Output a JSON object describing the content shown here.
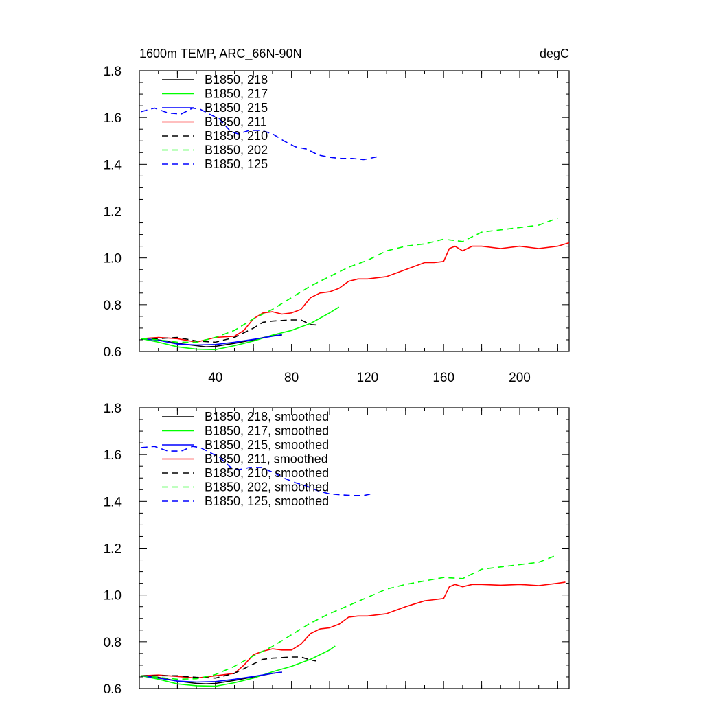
{
  "chart_data": [
    {
      "type": "line",
      "title": "1600m TEMP, ARC_66N-90N",
      "units": "degC",
      "xlim": [
        0,
        226
      ],
      "ylim": [
        0.6,
        1.8
      ],
      "xticks": [
        40,
        80,
        120,
        160,
        200
      ],
      "yticks": [
        0.6,
        0.8,
        1.0,
        1.2,
        1.4,
        1.6,
        1.8
      ],
      "ytick_labels": [
        "0.6",
        "0.8",
        "1.0",
        "1.2",
        "1.4",
        "1.6",
        "1.8"
      ],
      "legend_position": "top-left",
      "series": [
        {
          "name": "B1850, 218",
          "color": "#000000",
          "dash": "solid",
          "x": [
            1,
            10,
            20,
            30,
            35,
            40,
            50,
            60,
            70,
            75
          ],
          "y": [
            0.655,
            0.65,
            0.635,
            0.625,
            0.62,
            0.622,
            0.635,
            0.65,
            0.668,
            0.67
          ]
        },
        {
          "name": "B1850, 217",
          "color": "#00ff00",
          "dash": "solid",
          "x": [
            1,
            10,
            20,
            30,
            40,
            50,
            60,
            70,
            80,
            90,
            100,
            105
          ],
          "y": [
            0.655,
            0.64,
            0.62,
            0.61,
            0.608,
            0.625,
            0.645,
            0.67,
            0.69,
            0.72,
            0.765,
            0.79
          ]
        },
        {
          "name": "B1850, 215",
          "color": "#0000ff",
          "dash": "solid",
          "x": [
            1,
            10,
            20,
            30,
            40,
            50,
            60,
            70,
            75
          ],
          "y": [
            0.655,
            0.648,
            0.632,
            0.628,
            0.63,
            0.64,
            0.652,
            0.665,
            0.672
          ]
        },
        {
          "name": "B1850, 211",
          "color": "#ff0000",
          "dash": "solid",
          "x": [
            1,
            10,
            20,
            30,
            40,
            50,
            55,
            60,
            65,
            70,
            75,
            80,
            85,
            90,
            95,
            100,
            105,
            110,
            115,
            120,
            125,
            130,
            140,
            150,
            155,
            160,
            163,
            166,
            170,
            175,
            180,
            190,
            200,
            210,
            220,
            226
          ],
          "y": [
            0.655,
            0.66,
            0.655,
            0.64,
            0.66,
            0.665,
            0.69,
            0.74,
            0.765,
            0.77,
            0.76,
            0.765,
            0.78,
            0.83,
            0.85,
            0.855,
            0.87,
            0.9,
            0.91,
            0.91,
            0.915,
            0.92,
            0.95,
            0.98,
            0.98,
            0.985,
            1.04,
            1.05,
            1.03,
            1.05,
            1.05,
            1.04,
            1.05,
            1.04,
            1.05,
            1.065
          ]
        },
        {
          "name": "B1850, 210",
          "color": "#000000",
          "dash": "dashed",
          "x": [
            1,
            10,
            20,
            30,
            40,
            50,
            60,
            65,
            70,
            80,
            85,
            90,
            95
          ],
          "y": [
            0.655,
            0.655,
            0.66,
            0.645,
            0.64,
            0.66,
            0.7,
            0.725,
            0.73,
            0.735,
            0.735,
            0.715,
            0.712
          ]
        },
        {
          "name": "B1850, 202",
          "color": "#00ff00",
          "dash": "dashed",
          "x": [
            1,
            10,
            20,
            30,
            40,
            50,
            60,
            70,
            80,
            90,
            100,
            110,
            120,
            130,
            140,
            150,
            160,
            170,
            180,
            190,
            200,
            210,
            220
          ],
          "y": [
            0.655,
            0.65,
            0.64,
            0.64,
            0.66,
            0.69,
            0.74,
            0.78,
            0.83,
            0.88,
            0.92,
            0.96,
            0.99,
            1.03,
            1.05,
            1.06,
            1.08,
            1.07,
            1.11,
            1.12,
            1.13,
            1.14,
            1.17
          ]
        },
        {
          "name": "B1850, 125",
          "color": "#0000ff",
          "dash": "dashed",
          "x": [
            1,
            8,
            15,
            22,
            28,
            32,
            38,
            42,
            48,
            52,
            58,
            64,
            70,
            76,
            82,
            88,
            94,
            100,
            106,
            112,
            118,
            125
          ],
          "y": [
            1.625,
            1.64,
            1.62,
            1.615,
            1.64,
            1.635,
            1.61,
            1.595,
            1.54,
            1.53,
            1.545,
            1.545,
            1.53,
            1.5,
            1.475,
            1.465,
            1.44,
            1.43,
            1.425,
            1.425,
            1.42,
            1.432
          ]
        }
      ]
    },
    {
      "type": "line",
      "xlim": [
        0,
        226
      ],
      "ylim": [
        0.6,
        1.8
      ],
      "xticks": [
        40,
        80,
        120,
        160,
        200
      ],
      "yticks": [
        0.6,
        0.8,
        1.0,
        1.2,
        1.4,
        1.6,
        1.8
      ],
      "ytick_labels": [
        "0.6",
        "0.8",
        "1.0",
        "1.2",
        "1.4",
        "1.6",
        "1.8"
      ],
      "legend_position": "top-left",
      "series": [
        {
          "name": "B1850, 218, smoothed",
          "color": "#000000",
          "dash": "solid",
          "x": [
            1,
            10,
            20,
            30,
            35,
            40,
            50,
            60,
            70,
            75
          ],
          "y": [
            0.655,
            0.648,
            0.632,
            0.622,
            0.62,
            0.622,
            0.635,
            0.65,
            0.665,
            0.67
          ]
        },
        {
          "name": "B1850, 217, smoothed",
          "color": "#00ff00",
          "dash": "solid",
          "x": [
            1,
            10,
            20,
            30,
            40,
            50,
            60,
            70,
            80,
            90,
            100,
            103
          ],
          "y": [
            0.655,
            0.64,
            0.62,
            0.612,
            0.61,
            0.625,
            0.645,
            0.672,
            0.695,
            0.725,
            0.765,
            0.782
          ]
        },
        {
          "name": "B1850, 215, smoothed",
          "color": "#0000ff",
          "dash": "solid",
          "x": [
            1,
            10,
            20,
            30,
            40,
            50,
            60,
            70,
            75
          ],
          "y": [
            0.655,
            0.645,
            0.632,
            0.628,
            0.63,
            0.64,
            0.652,
            0.665,
            0.67
          ]
        },
        {
          "name": "B1850, 211, smoothed",
          "color": "#ff0000",
          "dash": "solid",
          "x": [
            1,
            10,
            20,
            30,
            40,
            50,
            55,
            60,
            65,
            70,
            75,
            80,
            85,
            90,
            95,
            100,
            105,
            110,
            115,
            120,
            125,
            130,
            140,
            150,
            155,
            160,
            163,
            166,
            170,
            175,
            180,
            190,
            200,
            210,
            220,
            224
          ],
          "y": [
            0.655,
            0.658,
            0.652,
            0.645,
            0.655,
            0.665,
            0.7,
            0.745,
            0.76,
            0.77,
            0.765,
            0.765,
            0.79,
            0.835,
            0.855,
            0.86,
            0.875,
            0.905,
            0.91,
            0.91,
            0.915,
            0.92,
            0.95,
            0.975,
            0.98,
            0.985,
            1.035,
            1.045,
            1.035,
            1.045,
            1.045,
            1.042,
            1.045,
            1.04,
            1.05,
            1.055
          ]
        },
        {
          "name": "B1850, 210, smoothed",
          "color": "#000000",
          "dash": "dashed",
          "x": [
            1,
            10,
            20,
            30,
            40,
            50,
            60,
            65,
            70,
            80,
            85,
            90,
            93
          ],
          "y": [
            0.655,
            0.655,
            0.655,
            0.648,
            0.645,
            0.665,
            0.705,
            0.725,
            0.73,
            0.735,
            0.735,
            0.722,
            0.718
          ]
        },
        {
          "name": "B1850, 202, smoothed",
          "color": "#00ff00",
          "dash": "dashed",
          "x": [
            1,
            10,
            20,
            30,
            40,
            50,
            60,
            70,
            80,
            90,
            100,
            110,
            120,
            130,
            140,
            150,
            160,
            170,
            180,
            190,
            200,
            210,
            218
          ],
          "y": [
            0.655,
            0.648,
            0.64,
            0.642,
            0.66,
            0.695,
            0.74,
            0.78,
            0.83,
            0.88,
            0.92,
            0.955,
            0.99,
            1.025,
            1.045,
            1.06,
            1.075,
            1.07,
            1.11,
            1.12,
            1.13,
            1.14,
            1.165
          ]
        },
        {
          "name": "B1850, 125, smoothed",
          "color": "#0000ff",
          "dash": "dashed",
          "x": [
            1,
            8,
            15,
            22,
            28,
            32,
            38,
            42,
            48,
            52,
            58,
            64,
            70,
            76,
            82,
            88,
            94,
            100,
            106,
            112,
            118,
            122
          ],
          "y": [
            1.63,
            1.635,
            1.615,
            1.615,
            1.635,
            1.63,
            1.605,
            1.59,
            1.545,
            1.535,
            1.545,
            1.545,
            1.525,
            1.5,
            1.48,
            1.465,
            1.445,
            1.432,
            1.428,
            1.425,
            1.425,
            1.432
          ]
        }
      ]
    }
  ]
}
